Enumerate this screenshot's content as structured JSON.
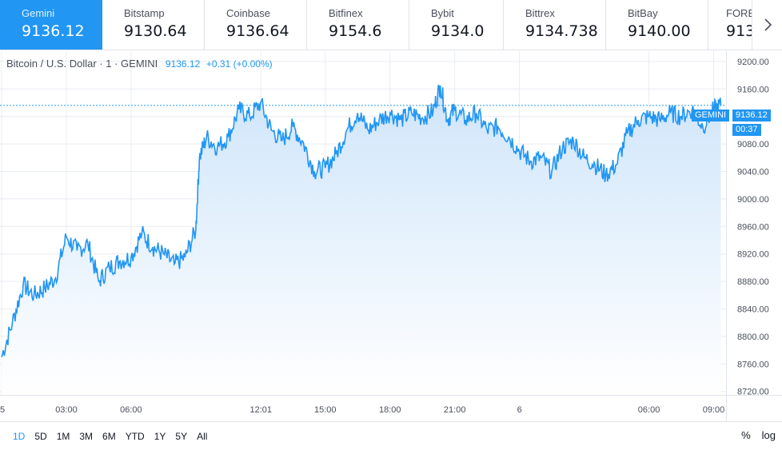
{
  "exchanges": [
    {
      "name": "Gemini",
      "price": "9136.12",
      "active": true
    },
    {
      "name": "Bitstamp",
      "price": "9130.64"
    },
    {
      "name": "Coinbase",
      "price": "9136.64"
    },
    {
      "name": "Bitfinex",
      "price": "9154.6"
    },
    {
      "name": "Bybit",
      "price": "9134.0"
    },
    {
      "name": "Bittrex",
      "price": "9134.738"
    },
    {
      "name": "BitBay",
      "price": "9140.00"
    },
    {
      "name": "FORE",
      "price": "913"
    }
  ],
  "legend": {
    "symbol": "Bitcoin / U.S. Dollar · 1 · GEMINI",
    "last": "9136.12",
    "change": "+0.31 (+0.00%)"
  },
  "price_tags": {
    "exchange": "GEMINI",
    "last": "9136.12",
    "countdown": "00:37"
  },
  "ranges": [
    "1D",
    "5D",
    "1M",
    "3M",
    "6M",
    "YTD",
    "1Y",
    "5Y",
    "All"
  ],
  "active_range": "1D",
  "scale_options": {
    "percent": "%",
    "log": "log"
  },
  "colors": {
    "accent": "#2196f3",
    "grid": "#e9ecf2",
    "fill_top": "#cfe5fa",
    "fill_bottom": "#ffffff"
  },
  "chart_data": {
    "type": "area",
    "series": [
      {
        "x": [
          "00:00",
          "00:30",
          "01:00",
          "01:30",
          "02:00",
          "02:30",
          "03:00",
          "03:30",
          "04:00",
          "04:30",
          "05:00",
          "05:30",
          "06:00",
          "06:30",
          "07:00",
          "07:30",
          "08:00",
          "08:30",
          "09:00",
          "09:10",
          "09:30",
          "10:00",
          "10:30",
          "11:00",
          "11:30",
          "12:00",
          "12:30",
          "13:00",
          "13:30",
          "14:00",
          "14:30",
          "15:00",
          "15:30",
          "16:00",
          "16:30",
          "17:00",
          "17:30",
          "18:00",
          "18:30",
          "19:00",
          "19:30",
          "20:00",
          "20:20",
          "20:40",
          "21:00",
          "21:30",
          "22:00",
          "22:30",
          "23:00",
          "23:30",
          "00:00",
          "00:30",
          "01:00",
          "01:30",
          "02:00",
          "02:30",
          "03:00",
          "03:30",
          "04:00",
          "04:30",
          "05:00",
          "05:30",
          "06:00",
          "06:30",
          "07:00",
          "07:30",
          "08:00",
          "08:30",
          "09:00",
          "09:20"
        ],
        "values": [
          8770,
          8820,
          8875,
          8860,
          8870,
          8885,
          8945,
          8925,
          8935,
          8880,
          8900,
          8910,
          8915,
          8950,
          8930,
          8920,
          8905,
          8915,
          8955,
          9060,
          9090,
          9075,
          9090,
          9130,
          9120,
          9140,
          9100,
          9085,
          9105,
          9080,
          9040,
          9045,
          9065,
          9100,
          9125,
          9100,
          9115,
          9125,
          9115,
          9125,
          9118,
          9128,
          9165,
          9115,
          9130,
          9115,
          9125,
          9100,
          9105,
          9090,
          9070,
          9055,
          9060,
          9040,
          9075,
          9085,
          9060,
          9050,
          9035,
          9050,
          9095,
          9115,
          9120,
          9115,
          9125,
          9120,
          9130,
          9105,
          9130,
          9136
        ]
      }
    ],
    "x_ticks": [
      "5",
      "03:00",
      "06:00",
      "12:01",
      "15:00",
      "18:00",
      "21:00",
      "6",
      "06:00",
      "09:00"
    ],
    "y_ticks": [
      "9200.00",
      "9160.00",
      "9120.00",
      "9080.00",
      "9040.00",
      "9000.00",
      "8960.00",
      "8920.00",
      "8880.00",
      "8840.00",
      "8800.00",
      "8760.00",
      "8720.00"
    ],
    "ylim": [
      8715,
      9215
    ],
    "last_price": 9136.12,
    "grid": true
  }
}
